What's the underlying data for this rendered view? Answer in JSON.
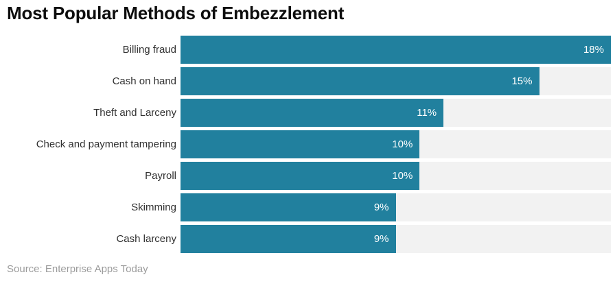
{
  "title": "Most Popular Methods of Embezzlement",
  "source": "Source: Enterprise Apps Today",
  "colors": {
    "bar": "#21809e",
    "track": "#f2f2f2",
    "title_text": "#0d0d0d",
    "category_text": "#303030",
    "value_text": "#ffffff",
    "source_text": "#9b9b9b"
  },
  "chart_data": {
    "type": "bar",
    "orientation": "horizontal",
    "title": "Most Popular Methods of Embezzlement",
    "xlabel": "",
    "ylabel": "",
    "categories": [
      "Billing fraud",
      "Cash on hand",
      "Theft and Larceny",
      "Check and payment tampering",
      "Payroll",
      "Skimming",
      "Cash larceny"
    ],
    "values": [
      18,
      15,
      11,
      10,
      10,
      9,
      9
    ],
    "value_labels": [
      "18%",
      "15%",
      "11%",
      "10%",
      "10%",
      "9%",
      "9%"
    ],
    "xlim": [
      0,
      18
    ],
    "grid": false,
    "legend": false,
    "value_labels_position": "inside-end",
    "track_full_width": true
  }
}
